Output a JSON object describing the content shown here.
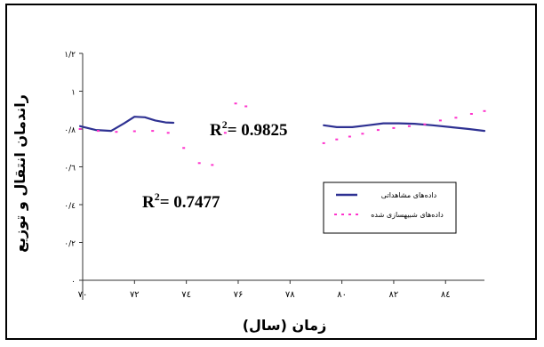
{
  "chart_data": {
    "type": "line",
    "xlabel": "زمان (سال)",
    "ylabel": "راندمان انتقال و توزیع",
    "x_ticks": [
      {
        "value": 70,
        "label": "۷۰"
      },
      {
        "value": 72,
        "label": "۷۲"
      },
      {
        "value": 74,
        "label": "۷٤"
      },
      {
        "value": 76,
        "label": "۷۶"
      },
      {
        "value": 78,
        "label": "۷۸"
      },
      {
        "value": 80,
        "label": "۸۰"
      },
      {
        "value": 82,
        "label": "۸۲"
      },
      {
        "value": 84,
        "label": "۸٤"
      }
    ],
    "y_ticks": [
      {
        "value": 0,
        "label": "۰"
      },
      {
        "value": 0.2,
        "label": "۰/۲"
      },
      {
        "value": 0.4,
        "label": "۰/٤"
      },
      {
        "value": 0.6,
        "label": "۰/٦"
      },
      {
        "value": 0.8,
        "label": "۰/۸"
      },
      {
        "value": 1.0,
        "label": "۱"
      },
      {
        "value": 1.2,
        "label": "۱/۲"
      }
    ],
    "xlim": [
      70,
      85.5
    ],
    "ylim": [
      0,
      1.2
    ],
    "legend_position": "middle-right",
    "series": [
      {
        "name": "دادەهای مشاهداتی",
        "color": "#2e3192",
        "style": "solid",
        "segments": [
          [
            [
              69.9,
              0.815
            ],
            [
              70.5,
              0.795
            ],
            [
              71.1,
              0.79
            ],
            [
              71.6,
              0.83
            ],
            [
              72.0,
              0.865
            ],
            [
              72.4,
              0.862
            ],
            [
              72.8,
              0.845
            ],
            [
              73.2,
              0.835
            ],
            [
              73.5,
              0.833
            ]
          ],
          [
            [
              79.3,
              0.82
            ],
            [
              79.8,
              0.81
            ],
            [
              80.4,
              0.81
            ],
            [
              81.0,
              0.82
            ],
            [
              81.6,
              0.83
            ],
            [
              82.2,
              0.83
            ],
            [
              82.8,
              0.828
            ],
            [
              83.5,
              0.82
            ],
            [
              84.2,
              0.81
            ],
            [
              84.9,
              0.8
            ],
            [
              85.5,
              0.79
            ]
          ]
        ]
      },
      {
        "name": "دادەهای شبیهسازی شده",
        "color": "#ff33cc",
        "style": "dotted",
        "points": [
          [
            69.9,
            0.8
          ],
          [
            70.6,
            0.79
          ],
          [
            71.3,
            0.785
          ],
          [
            72.0,
            0.788
          ],
          [
            72.7,
            0.79
          ],
          [
            73.3,
            0.78
          ],
          [
            73.9,
            0.7
          ],
          [
            74.5,
            0.62
          ],
          [
            75.0,
            0.61
          ],
          [
            75.5,
            0.78
          ],
          [
            75.9,
            0.935
          ],
          [
            76.3,
            0.92
          ],
          [
            79.3,
            0.725
          ],
          [
            79.8,
            0.745
          ],
          [
            80.3,
            0.76
          ],
          [
            80.8,
            0.775
          ],
          [
            81.4,
            0.795
          ],
          [
            82.0,
            0.805
          ],
          [
            82.6,
            0.815
          ],
          [
            83.2,
            0.825
          ],
          [
            83.8,
            0.845
          ],
          [
            84.4,
            0.86
          ],
          [
            85.0,
            0.88
          ],
          [
            85.5,
            0.895
          ]
        ]
      }
    ],
    "annotations": [
      {
        "base": "R",
        "sup": "2",
        "text": "= 0.9825"
      },
      {
        "base": "R",
        "sup": "2",
        "text": "= 0.7477"
      }
    ]
  },
  "colors": {
    "frame": "#000000",
    "axis": "#333333"
  }
}
